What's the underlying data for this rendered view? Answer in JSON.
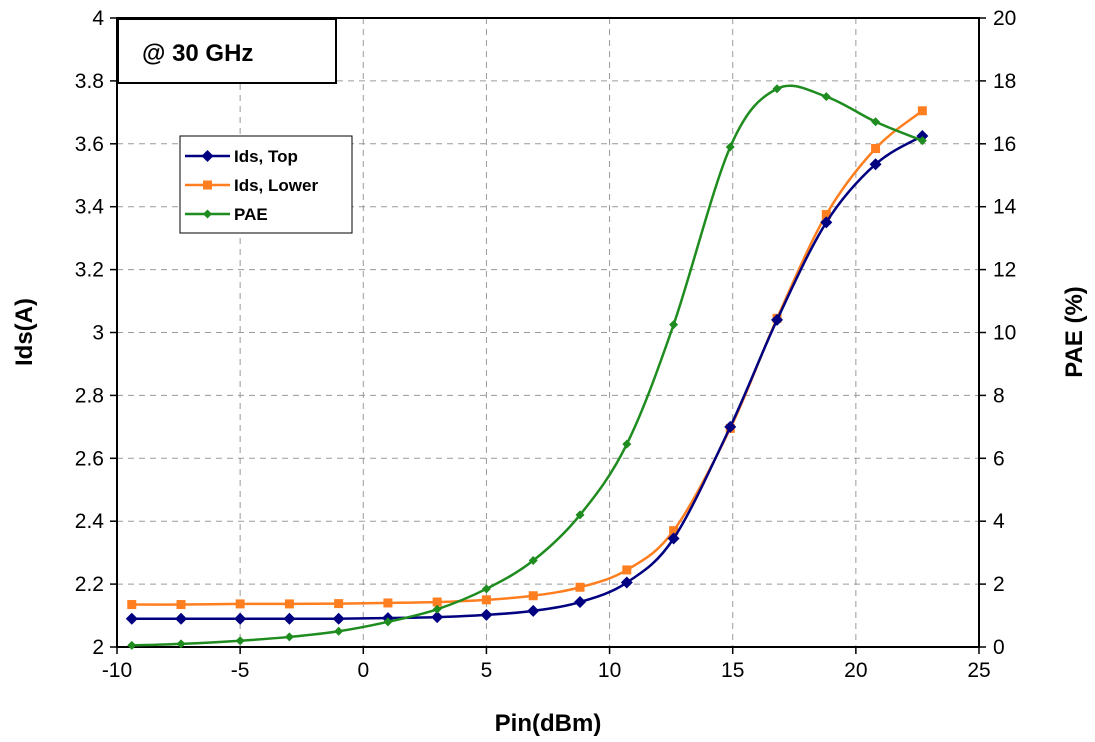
{
  "chart_data": {
    "type": "line",
    "annotation": "@ 30 GHz",
    "xlabel": "Pin(dBm)",
    "ylabel": "Ids(A)",
    "y2label": "PAE (%)",
    "xlim": [
      -10,
      25
    ],
    "ylim": [
      2,
      4
    ],
    "y2lim": [
      0,
      20
    ],
    "xticks": [
      "-10",
      "-5",
      "0",
      "5",
      "10",
      "15",
      "20",
      "25"
    ],
    "yticks": [
      "2",
      "2.2",
      "2.4",
      "2.6",
      "2.8",
      "3",
      "3.2",
      "3.4",
      "3.6",
      "3.8",
      "4"
    ],
    "y2ticks": [
      "0",
      "2",
      "4",
      "6",
      "8",
      "10",
      "12",
      "14",
      "16",
      "18",
      "20"
    ],
    "grid": true,
    "legend_position": "upper-left",
    "x": [
      -9.4,
      -7.4,
      -5.0,
      -3.0,
      -1.0,
      1.0,
      3.0,
      5.0,
      6.9,
      8.8,
      10.7,
      12.6,
      14.9,
      16.8,
      18.8,
      20.8,
      22.7
    ],
    "series": [
      {
        "name": "Ids, Top",
        "axis": "left",
        "color": "#000080",
        "marker": "diamond",
        "values": [
          2.09,
          2.09,
          2.09,
          2.09,
          2.09,
          2.092,
          2.095,
          2.102,
          2.115,
          2.143,
          2.205,
          2.345,
          2.7,
          3.04,
          3.35,
          3.535,
          3.625
        ]
      },
      {
        "name": "Ids, Lower",
        "axis": "left",
        "color": "#ff7f20",
        "marker": "square",
        "values": [
          2.135,
          2.135,
          2.137,
          2.137,
          2.138,
          2.14,
          2.143,
          2.15,
          2.163,
          2.19,
          2.245,
          2.37,
          2.695,
          3.045,
          3.375,
          3.585,
          3.705
        ]
      },
      {
        "name": "PAE",
        "axis": "right",
        "color": "#1e8c1e",
        "marker": "diamond-small",
        "values": [
          0.05,
          0.1,
          0.2,
          0.32,
          0.5,
          0.8,
          1.2,
          1.85,
          2.75,
          4.2,
          6.45,
          10.25,
          15.9,
          17.75,
          17.5,
          16.7,
          16.1
        ]
      }
    ]
  }
}
